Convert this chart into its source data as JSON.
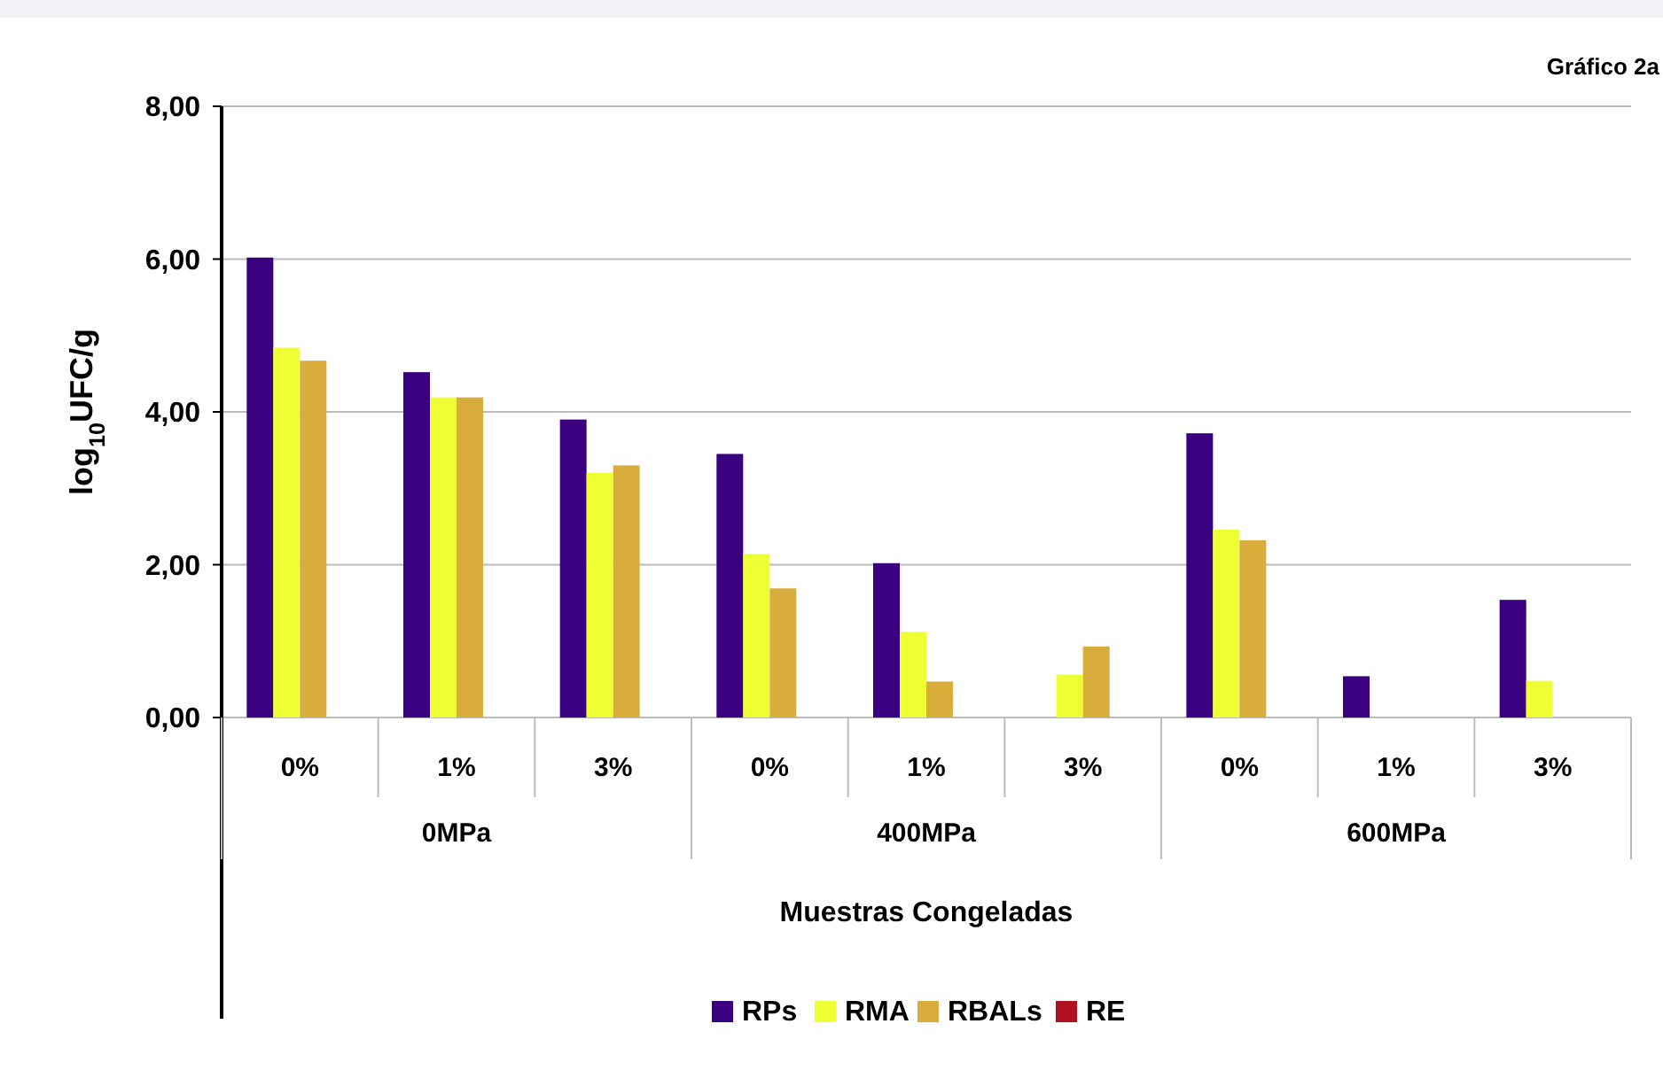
{
  "chart_data": {
    "type": "bar",
    "title": "Gráfico 2a",
    "xlabel": "Muestras Congeladas",
    "ylabel": "log$_{10}$UFC/g",
    "categories": [
      "0%",
      "1%",
      "3%",
      "0%",
      "1%",
      "3%",
      "0%",
      "1%",
      "3%"
    ],
    "series": [
      {
        "name": "RPs",
        "color": "#3a0080",
        "values": [
          6.02,
          4.52,
          3.9,
          3.45,
          2.02,
          null,
          3.72,
          0.54,
          1.54
        ]
      },
      {
        "name": "RMA",
        "color": "#eeff33",
        "values": [
          4.84,
          4.19,
          3.2,
          2.14,
          1.12,
          0.56,
          2.46,
          null,
          0.48
        ]
      },
      {
        "name": "RBALs",
        "color": "#d8ad3c",
        "values": [
          4.67,
          4.19,
          3.3,
          1.69,
          0.47,
          0.93,
          2.32,
          null,
          null
        ]
      },
      {
        "name": "RE",
        "color": "#b01020",
        "values": [
          null,
          null,
          null,
          null,
          null,
          null,
          null,
          null,
          null
        ]
      }
    ],
    "annotations": [
      "0MPa",
      "400MPa",
      "600MPa"
    ],
    "ylim": [
      0,
      8
    ],
    "yticks": [
      {
        "value": 0,
        "label": "0,00"
      },
      {
        "value": 2,
        "label": "2,00"
      },
      {
        "value": 4,
        "label": "4,00"
      },
      {
        "value": 6,
        "label": "6,00"
      },
      {
        "value": 8,
        "label": "8,00"
      }
    ],
    "grid": "y",
    "legend": "bottom"
  }
}
